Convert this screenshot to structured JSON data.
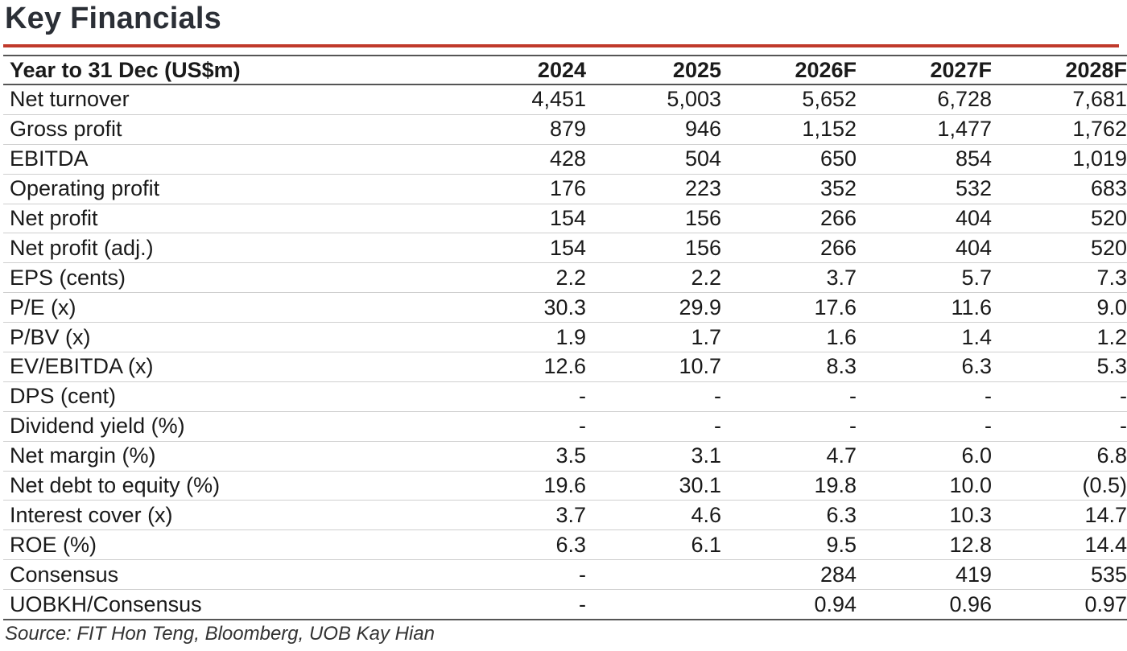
{
  "title": "Key Financials",
  "table": {
    "header": {
      "label": "Year to 31 Dec (US$m)",
      "years": [
        "2024",
        "2025",
        "2026F",
        "2027F",
        "2028F"
      ]
    },
    "rows": [
      {
        "label": "Net turnover",
        "values": [
          "4,451",
          "5,003",
          "5,652",
          "6,728",
          "7,681"
        ]
      },
      {
        "label": "Gross profit",
        "values": [
          "879",
          "946",
          "1,152",
          "1,477",
          "1,762"
        ]
      },
      {
        "label": "EBITDA",
        "values": [
          "428",
          "504",
          "650",
          "854",
          "1,019"
        ]
      },
      {
        "label": "Operating profit",
        "values": [
          "176",
          "223",
          "352",
          "532",
          "683"
        ]
      },
      {
        "label": "Net profit",
        "values": [
          "154",
          "156",
          "266",
          "404",
          "520"
        ]
      },
      {
        "label": "Net profit (adj.)",
        "values": [
          "154",
          "156",
          "266",
          "404",
          "520"
        ]
      },
      {
        "label": "EPS (cents)",
        "values": [
          "2.2",
          "2.2",
          "3.7",
          "5.7",
          "7.3"
        ]
      },
      {
        "label": "P/E (x)",
        "values": [
          "30.3",
          "29.9",
          "17.6",
          "11.6",
          "9.0"
        ]
      },
      {
        "label": "P/BV (x)",
        "values": [
          "1.9",
          "1.7",
          "1.6",
          "1.4",
          "1.2"
        ]
      },
      {
        "label": "EV/EBITDA (x)",
        "values": [
          "12.6",
          "10.7",
          "8.3",
          "6.3",
          "5.3"
        ]
      },
      {
        "label": "DPS (cent)",
        "values": [
          "-",
          "-",
          "-",
          "-",
          "-"
        ]
      },
      {
        "label": "Dividend yield (%)",
        "values": [
          "-",
          "-",
          "-",
          "-",
          "-"
        ]
      },
      {
        "label": "Net margin (%)",
        "values": [
          "3.5",
          "3.1",
          "4.7",
          "6.0",
          "6.8"
        ]
      },
      {
        "label": "Net debt to equity (%)",
        "values": [
          "19.6",
          "30.1",
          "19.8",
          "10.0",
          "(0.5)"
        ]
      },
      {
        "label": "Interest cover (x)",
        "values": [
          "3.7",
          "4.6",
          "6.3",
          "10.3",
          "14.7"
        ]
      },
      {
        "label": "ROE (%)",
        "values": [
          "6.3",
          "6.1",
          "9.5",
          "12.8",
          "14.4"
        ]
      },
      {
        "label": "Consensus",
        "values": [
          "-",
          "",
          "284",
          "419",
          "535"
        ]
      },
      {
        "label": "UOBKH/Consensus",
        "values": [
          "-",
          "",
          "0.94",
          "0.96",
          "0.97"
        ]
      }
    ]
  },
  "source": "Source: FIT Hon Teng, Bloomberg, UOB Kay Hian",
  "colors": {
    "title_rule": "#c0392b",
    "title_text": "#2b2f36"
  }
}
